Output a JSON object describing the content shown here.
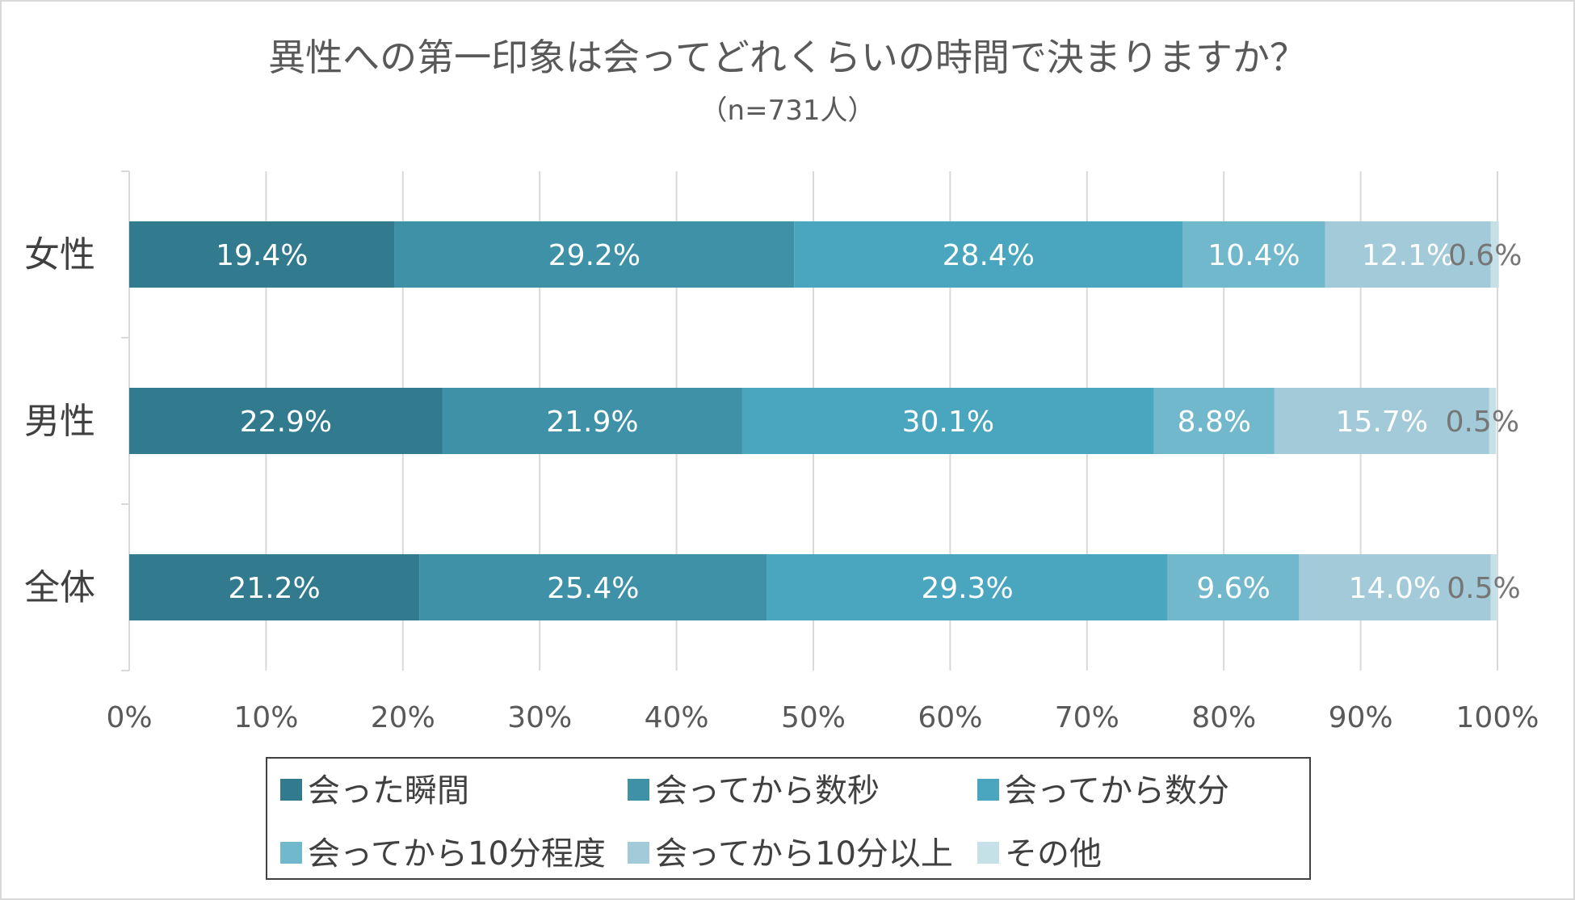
{
  "chart_data": {
    "type": "bar",
    "orientation": "horizontal",
    "stacked": "percent",
    "title": "異性への第一印象は会ってどれくらいの時間で決まりますか？",
    "subtitle": "（n=731人）",
    "xlabel": "",
    "ylabel": "",
    "xlim": [
      0,
      100
    ],
    "x_ticks": [
      "0%",
      "10%",
      "20%",
      "30%",
      "40%",
      "50%",
      "60%",
      "70%",
      "80%",
      "90%",
      "100%"
    ],
    "grid": true,
    "legend_position": "bottom",
    "categories": [
      "女性",
      "男性",
      "全体"
    ],
    "series": [
      {
        "name": "会った瞬間",
        "color": "#327b8e",
        "label_color": "#ffffff",
        "values": [
          19.4,
          22.9,
          21.2
        ],
        "labels": [
          "19.4%",
          "22.9%",
          "21.2%"
        ]
      },
      {
        "name": "会ってから数秒",
        "color": "#3e91a6",
        "label_color": "#ffffff",
        "values": [
          29.2,
          21.9,
          25.4
        ],
        "labels": [
          "29.2%",
          "21.9%",
          "25.4%"
        ]
      },
      {
        "name": "会ってから数分",
        "color": "#4aa6bf",
        "label_color": "#ffffff",
        "values": [
          28.4,
          30.1,
          29.3
        ],
        "labels": [
          "28.4%",
          "30.1%",
          "29.3%"
        ]
      },
      {
        "name": "会ってから10分程度",
        "color": "#72b8cc",
        "label_color": "#ffffff",
        "values": [
          10.4,
          8.8,
          9.6
        ],
        "labels": [
          "10.4%",
          "8.8%",
          "9.6%"
        ]
      },
      {
        "name": "会ってから10分以上",
        "color": "#a3cad8",
        "label_color": "#ffffff",
        "values": [
          12.1,
          15.7,
          14.0
        ],
        "labels": [
          "12.1%",
          "15.7%",
          "14.0%"
        ]
      },
      {
        "name": "その他",
        "color": "#c6e0e8",
        "label_color": "#767676",
        "values": [
          0.6,
          0.5,
          0.5
        ],
        "labels": [
          "0.6%",
          "0.5%",
          "0.5%"
        ]
      }
    ]
  }
}
